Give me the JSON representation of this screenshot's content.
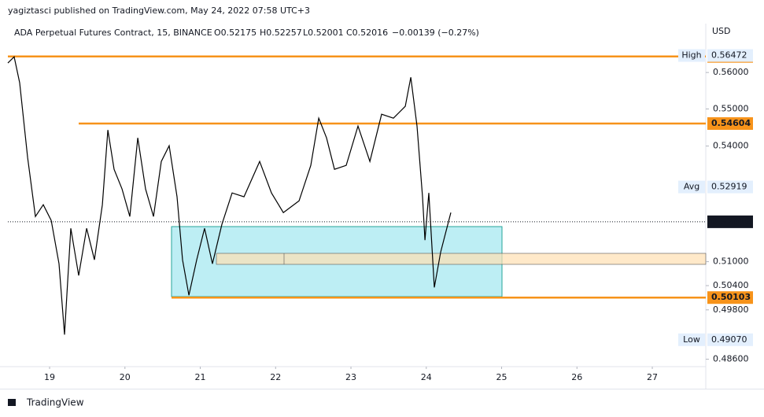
{
  "header": {
    "published": "yagiztasci published on TradingView.com, May 24, 2022 07:58 UTC+3",
    "symbol": "ADA Perpetual Futures Contract, 15, BINANCE",
    "open": "O0.52175",
    "high": "H0.52257",
    "low": "L0.52001",
    "close": "C0.52016",
    "change": "−0.00139 (−0.27%)"
  },
  "footer": "TradingView",
  "chart_data": {
    "type": "line",
    "color": "#000000",
    "log_scale": true,
    "grid": false,
    "y_unit": "USD",
    "xlim": [
      18.446,
      27.71
    ],
    "xticks": [
      19,
      20,
      21,
      22,
      23,
      24,
      25,
      26,
      27
    ],
    "ylim": [
      0.4844,
      0.5737
    ],
    "yticks": [
      {
        "value": 0.56,
        "label": "0.56000"
      },
      {
        "value": 0.55,
        "label": "0.55000"
      },
      {
        "value": 0.54,
        "label": "0.54000"
      },
      {
        "value": 0.51,
        "label": "0.51000"
      },
      {
        "value": 0.504,
        "label": "0.50400"
      },
      {
        "value": 0.498,
        "label": "0.49800"
      },
      {
        "value": 0.486,
        "label": "0.48600"
      }
    ],
    "x": [
      18.446,
      18.53,
      18.603,
      18.708,
      18.812,
      18.916,
      19.021,
      19.125,
      19.198,
      19.282,
      19.386,
      19.491,
      19.595,
      19.7,
      19.773,
      19.856,
      19.961,
      20.065,
      20.17,
      20.274,
      20.379,
      20.483,
      20.587,
      20.692,
      20.765,
      20.849,
      20.953,
      21.057,
      21.162,
      21.287,
      21.423,
      21.58,
      21.788,
      21.945,
      22.102,
      22.311,
      22.467,
      22.572,
      22.676,
      22.781,
      22.937,
      23.094,
      23.251,
      23.407,
      23.564,
      23.721,
      23.794,
      23.877,
      23.95,
      23.982,
      24.034,
      24.107,
      24.191,
      24.326
    ],
    "values": [
      0.56262,
      0.56437,
      0.55717,
      0.53696,
      0.52151,
      0.52457,
      0.5205,
      0.50948,
      0.49194,
      0.51848,
      0.50651,
      0.51848,
      0.51047,
      0.52457,
      0.54432,
      0.53383,
      0.52866,
      0.52151,
      0.5422,
      0.52866,
      0.52151,
      0.53591,
      0.5401,
      0.52662,
      0.51047,
      0.5016,
      0.51047,
      0.51848,
      0.50948,
      0.51948,
      0.52764,
      0.52662,
      0.53591,
      0.52764,
      0.52253,
      0.52559,
      0.53487,
      0.5475,
      0.5422,
      0.53383,
      0.53487,
      0.54538,
      0.53591,
      0.54857,
      0.5475,
      0.55071,
      0.55869,
      0.54538,
      0.52662,
      0.51546,
      0.52764,
      0.50356,
      0.51246,
      0.52253
    ],
    "levels": [
      0.56447,
      0.54604,
      0.50103
    ],
    "high_label": "High",
    "high": 0.56472,
    "avg_label": "Avg",
    "avg": 0.52919,
    "low_label": "Low",
    "low": {
      "value": 0.4907,
      "label": "0.49070"
    },
    "last": 0.52016
  }
}
